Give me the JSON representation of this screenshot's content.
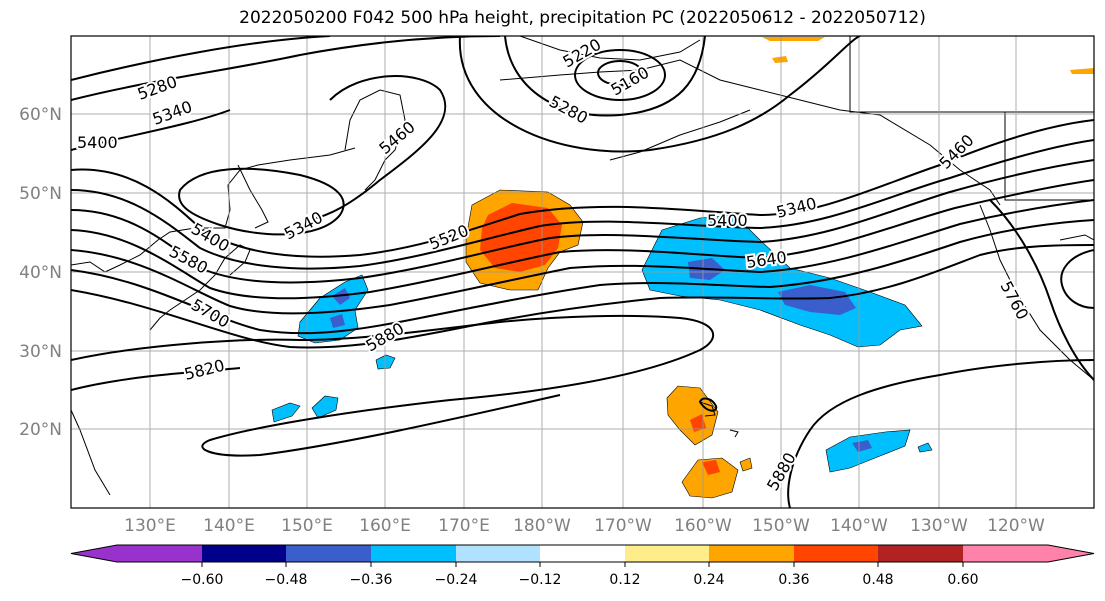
{
  "title": "2022050200 F042 500 hPa height, precipitation PC (2022050612 - 2022050712)",
  "map": {
    "lat_labels": [
      "60°N",
      "50°N",
      "40°N",
      "30°N",
      "20°N"
    ],
    "lon_labels": [
      "130°E",
      "140°E",
      "150°E",
      "160°E",
      "170°E",
      "180°W",
      "170°W",
      "160°W",
      "150°W",
      "140°W",
      "130°W",
      "120°W"
    ],
    "contour_labels": [
      "5280",
      "5340",
      "5400",
      "5220",
      "5160",
      "5280",
      "5460",
      "5400",
      "5580",
      "5340",
      "5520",
      "5700",
      "5820",
      "5880",
      "5400",
      "5340",
      "5640",
      "5460",
      "5760",
      "5880"
    ]
  },
  "colorbar": {
    "tick_labels": [
      "−0.60",
      "−0.48",
      "−0.36",
      "−0.24",
      "−0.12",
      "0.12",
      "0.24",
      "0.36",
      "0.48",
      "0.60"
    ],
    "colors": [
      "#9932cc",
      "#00008b",
      "#3a5fcd",
      "#00bfff",
      "#b0e2ff",
      "#ffffff",
      "#ffec8b",
      "#ffa500",
      "#ff4500",
      "#b22222",
      "#ff82ab"
    ]
  }
}
